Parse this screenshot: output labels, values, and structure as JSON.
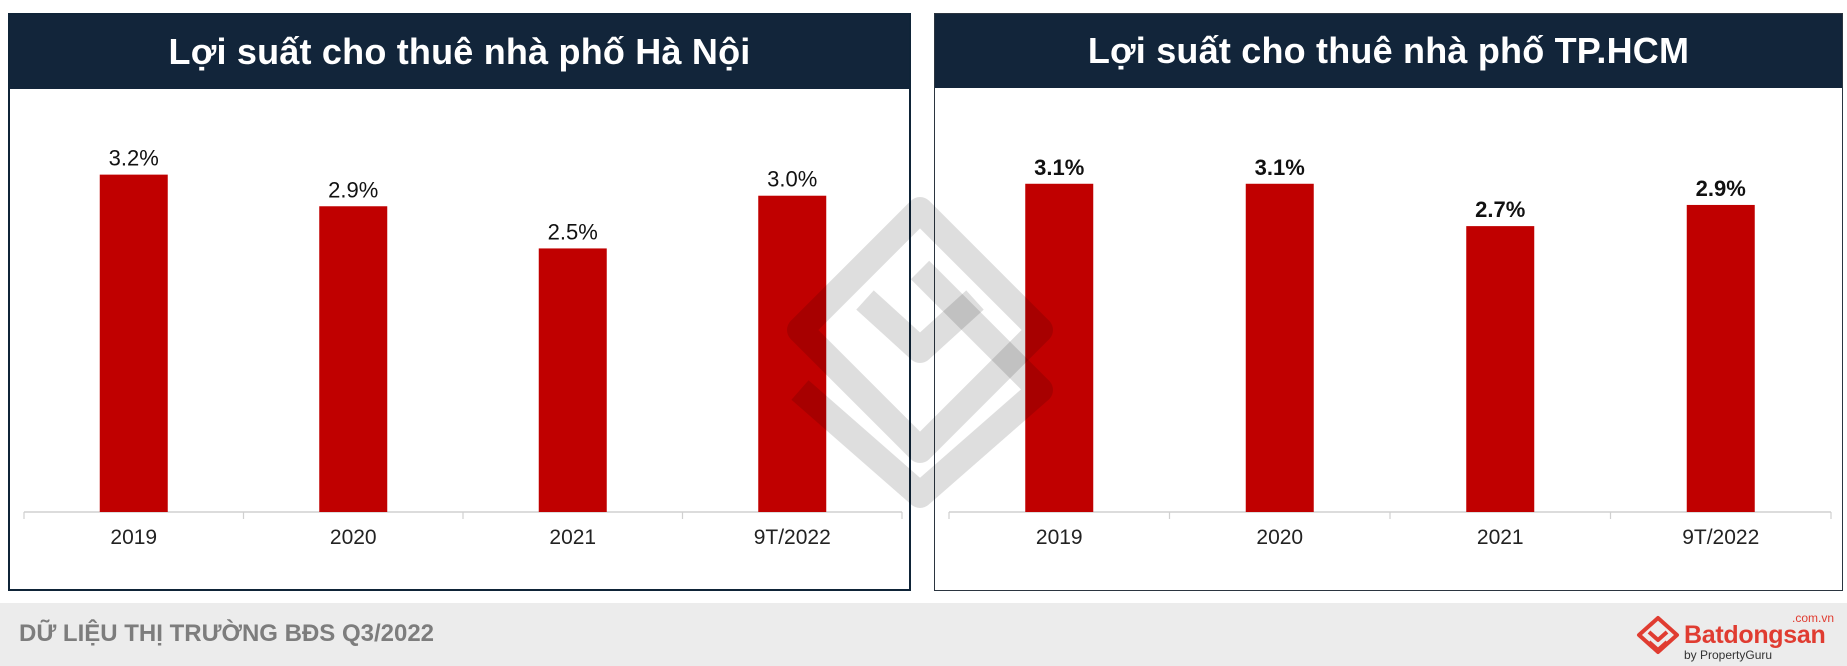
{
  "chart_data": [
    {
      "type": "bar",
      "title": "Lợi suất cho thuê nhà phố Hà Nội",
      "categories": [
        "2019",
        "2020",
        "2021",
        "9T/2022"
      ],
      "values": [
        3.2,
        2.9,
        2.5,
        3.0
      ],
      "value_labels": [
        "3.2%",
        "2.9%",
        "2.5%",
        "3.0%"
      ],
      "unit": "%",
      "ylim": [
        0,
        3.5
      ],
      "grid": false,
      "bar_color": "#c00000",
      "label_weight": "normal"
    },
    {
      "type": "bar",
      "title": "Lợi suất cho thuê nhà phố TP.HCM",
      "categories": [
        "2019",
        "2020",
        "2021",
        "9T/2022"
      ],
      "values": [
        3.1,
        3.1,
        2.7,
        2.9
      ],
      "value_labels": [
        "3.1%",
        "3.1%",
        "2.7%",
        "2.9%"
      ],
      "unit": "%",
      "ylim": [
        0,
        3.4
      ],
      "grid": false,
      "bar_color": "#c00000",
      "label_weight": "bold"
    }
  ],
  "footer": {
    "caption": "DỮ LIỆU THỊ TRƯỜNG BĐS Q3/2022",
    "brand_name": "Batdongsan",
    "brand_domain": ".com.vn",
    "brand_by": "by PropertyGuru"
  },
  "colors": {
    "header_bg": "#12253a",
    "bar": "#c00000",
    "brand": "#e03c31",
    "footer_bg": "#ececec"
  },
  "icons": {
    "watermark": "batdongsan-house-logo-icon",
    "brand_logo": "batdongsan-logo-icon"
  }
}
